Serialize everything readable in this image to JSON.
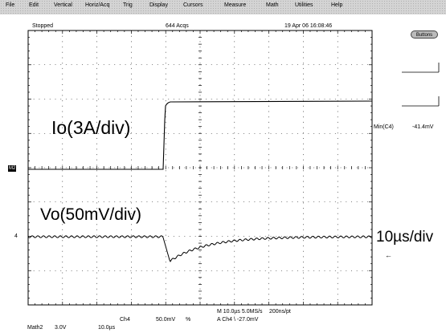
{
  "menubar": {
    "items": [
      "File",
      "Edit",
      "Vertical",
      "Horiz/Acq",
      "Trig",
      "Display",
      "Cursors",
      "Measure",
      "Math",
      "Utilities",
      "Help"
    ]
  },
  "status": {
    "run_state": "Stopped",
    "acquisitions": "644 Acqs",
    "timestamp": "19 Apr 06 16:08:46"
  },
  "buttons_label": "Buttons",
  "measurement": {
    "label": "Min(C4)",
    "value": "-41.4mV"
  },
  "annotations": {
    "io_label": "Io(3A/div)",
    "vo_label": "Vo(50mV/div)",
    "time_label": "10µs/div"
  },
  "markers": {
    "math_ref": "M2",
    "ch4_ref": "4",
    "arrow": "←"
  },
  "bottom_readout": {
    "ch4_name": "Ch4",
    "ch4_scale": "50.0mV",
    "ch4_coupling": "%",
    "timebase": "M 10.0µs 5.0MS/s",
    "record": "200ns/pt",
    "trigger": "A  Ch4  \\  -27.0mV",
    "math_name": "Math2",
    "math_scale": "3.0V",
    "math_time": "10.0µs"
  },
  "colors": {
    "grid": "#000000",
    "trace": "#000000",
    "menu_bg": "#d4d4d4"
  }
}
